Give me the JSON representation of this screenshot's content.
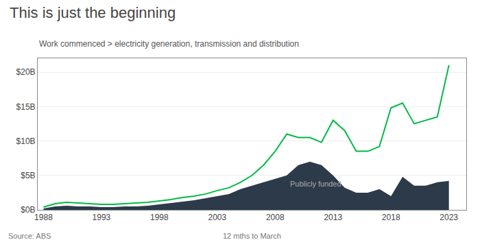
{
  "chart_data": {
    "type": "line",
    "title": "This is just the beginning",
    "subtitle": "Work commenced > electricity generation, transmission and distribution",
    "source": "Source: ABS",
    "x_label_note": "12 mths to March",
    "x": [
      1988,
      1989,
      1990,
      1991,
      1992,
      1993,
      1994,
      1995,
      1996,
      1997,
      1998,
      1999,
      2000,
      2001,
      2002,
      2003,
      2004,
      2005,
      2006,
      2007,
      2008,
      2009,
      2010,
      2011,
      2012,
      2013,
      2014,
      2015,
      2016,
      2017,
      2018,
      2019,
      2020,
      2021,
      2022,
      2023
    ],
    "series": [
      {
        "type": "area",
        "color": "#2d3a4a",
        "values": [
          0.2,
          0.5,
          0.6,
          0.5,
          0.5,
          0.4,
          0.4,
          0.5,
          0.5,
          0.6,
          0.8,
          1.0,
          1.2,
          1.4,
          1.7,
          2.0,
          2.3,
          3.0,
          3.5,
          4.0,
          4.5,
          5.0,
          6.5,
          7.0,
          6.5,
          5.0,
          3.2,
          2.5,
          2.5,
          3.0,
          2.0,
          4.8,
          3.5,
          3.5,
          4.0,
          4.2
        ]
      },
      {
        "type": "line",
        "color": "#00bb44",
        "values": [
          0.4,
          0.9,
          1.1,
          1.0,
          0.9,
          0.8,
          0.8,
          0.9,
          1.0,
          1.1,
          1.3,
          1.5,
          1.8,
          2.0,
          2.3,
          2.8,
          3.2,
          4.0,
          5.0,
          6.5,
          8.5,
          11.0,
          10.5,
          10.5,
          9.8,
          13.0,
          11.5,
          8.5,
          8.5,
          9.2,
          14.8,
          15.5,
          12.5,
          13.0,
          13.5,
          21.0
        ]
      }
    ],
    "annotations": [
      {
        "text": "Publicly funded",
        "x": 2011.5,
        "y": 3.8,
        "color": "#aaaaaa"
      }
    ],
    "xlim": [
      1987.5,
      2024.5
    ],
    "xticks": [
      1988,
      1993,
      1998,
      2003,
      2008,
      2013,
      2018,
      2023
    ],
    "ylim": [
      0,
      22
    ],
    "yticks": [
      {
        "value": 0,
        "label": "$0B"
      },
      {
        "value": 5,
        "label": "$5B"
      },
      {
        "value": 10,
        "label": "$10B"
      },
      {
        "value": 15,
        "label": "$15B"
      },
      {
        "value": 20,
        "label": "$20B"
      }
    ],
    "grid": "y"
  }
}
